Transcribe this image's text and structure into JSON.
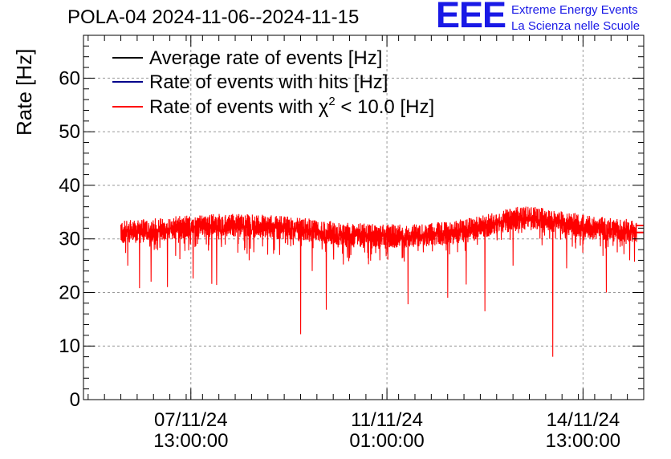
{
  "header": {
    "title": "POLA-04 2024-11-06--2024-11-15",
    "logo_mark": "EEE",
    "logo_line1": "Extreme Energy Events",
    "logo_line2": "La Scienza nelle Scuole"
  },
  "colors": {
    "average": "#000000",
    "hits": "#00008b",
    "chi2": "#ff0000",
    "grid": "#999999",
    "logo": "#1919e6"
  },
  "chart_data": {
    "type": "line",
    "title": "POLA-04 2024-11-06--2024-11-15",
    "ylabel": "Rate [Hz]",
    "xlabel": "",
    "ylim": [
      0,
      68
    ],
    "y_ticks": [
      0,
      10,
      20,
      30,
      40,
      50,
      60
    ],
    "x_unit": "hours since 2024-11-06 00:00",
    "xlim": [
      -9,
      231
    ],
    "x_ticks": [
      {
        "x": 37,
        "label_date": "07/11/24",
        "label_time": "13:00:00"
      },
      {
        "x": 121,
        "label_date": "11/11/24",
        "label_time": "01:00:00"
      },
      {
        "x": 205,
        "label_date": "14/11/24",
        "label_time": "13:00:00"
      }
    ],
    "grid": true,
    "legend_position": "top-left",
    "series": [
      {
        "name": "Average rate of events [Hz]",
        "key": "average",
        "values_x": [],
        "values": []
      },
      {
        "name": "Rate of events with hits [Hz]",
        "key": "hits",
        "values_x": [],
        "values": []
      },
      {
        "name": "Rate of events with χ² < 10.0 [Hz]",
        "key": "chi2",
        "baseline": {
          "x": [
            7,
            20,
            35,
            50,
            65,
            80,
            100,
            115,
            130,
            150,
            165,
            178,
            188,
            205,
            220,
            232
          ],
          "y": [
            31.2,
            31.6,
            32.2,
            32.6,
            32.4,
            32.0,
            31.0,
            30.6,
            30.5,
            31.2,
            32.6,
            34.0,
            33.6,
            32.4,
            31.6,
            31.4
          ]
        },
        "noise_amplitude": 2.2,
        "dips": [
          {
            "x": 10,
            "y": 25.0
          },
          {
            "x": 15,
            "y": 20.8
          },
          {
            "x": 20,
            "y": 22.0
          },
          {
            "x": 27,
            "y": 21.0
          },
          {
            "x": 38,
            "y": 22.6
          },
          {
            "x": 46,
            "y": 21.6
          },
          {
            "x": 48,
            "y": 21.4
          },
          {
            "x": 62,
            "y": 26.0
          },
          {
            "x": 75,
            "y": 27.0
          },
          {
            "x": 84,
            "y": 12.2
          },
          {
            "x": 89,
            "y": 24.0
          },
          {
            "x": 95,
            "y": 16.8
          },
          {
            "x": 104,
            "y": 26.5
          },
          {
            "x": 118,
            "y": 26.0
          },
          {
            "x": 130,
            "y": 17.8
          },
          {
            "x": 147,
            "y": 19.0
          },
          {
            "x": 155,
            "y": 21.5
          },
          {
            "x": 163,
            "y": 16.5
          },
          {
            "x": 175,
            "y": 25.0
          },
          {
            "x": 192,
            "y": 8.0
          },
          {
            "x": 198,
            "y": 24.5
          },
          {
            "x": 215,
            "y": 20.0
          },
          {
            "x": 225,
            "y": 26.0
          }
        ],
        "end_lines": [
          {
            "x_from": 228,
            "x_to": 240,
            "y": 32.5
          },
          {
            "x_from": 228,
            "x_to": 240,
            "y": 31.2
          }
        ]
      }
    ],
    "legend": [
      {
        "key": "average",
        "label": "Average rate of events [Hz]"
      },
      {
        "key": "hits",
        "label": "Rate of events with hits [Hz]"
      },
      {
        "key": "chi2",
        "label_prefix": "Rate of events with χ",
        "label_sup": "2",
        "label_suffix": " < 10.0 [Hz]"
      }
    ]
  }
}
